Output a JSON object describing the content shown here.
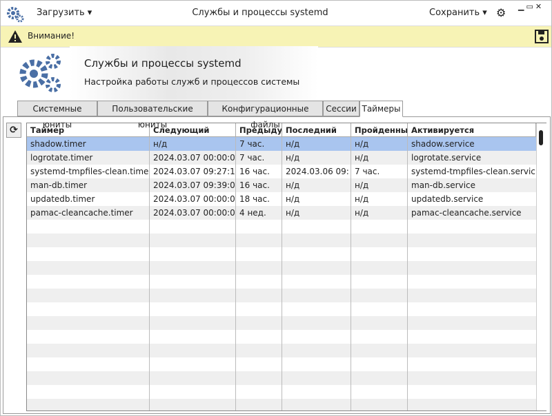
{
  "titlebar": {
    "load": "Загрузить",
    "title": "Службы и процессы systemd",
    "save": "Сохранить"
  },
  "warning": "Внимание!",
  "header": {
    "title": "Службы и процессы systemd",
    "subtitle": "Настройка работы служб и процессов системы"
  },
  "tabs": [
    "Системные юниты",
    "Пользовательские юниты",
    "Конфигурационные файлы",
    "Сессии",
    "Таймеры"
  ],
  "table": {
    "columns": [
      "Таймер",
      "Следующий",
      "Предыдущ",
      "Последний",
      "Пройденный",
      "Активируется"
    ],
    "rows": [
      [
        "shadow.timer",
        " н/д",
        "7 час.",
        "н/д",
        "н/д",
        "shadow.service"
      ],
      [
        "logrotate.timer",
        "2024.03.07 00:00:0",
        "7 час.",
        "н/д",
        "н/д",
        "logrotate.service"
      ],
      [
        "systemd-tmpfiles-clean.timer",
        "2024.03.07 09:27:1",
        "16 час.",
        "2024.03.06 09:",
        "7 час.",
        "systemd-tmpfiles-clean.servic"
      ],
      [
        "man-db.timer",
        "2024.03.07 09:39:0",
        "16 час.",
        "н/д",
        "н/д",
        "man-db.service"
      ],
      [
        "updatedb.timer",
        "2024.03.07 00:00:0",
        "18 час.",
        "н/д",
        "н/д",
        "updatedb.service"
      ],
      [
        "pamac-cleancache.timer",
        "2024.03.07 00:00:0",
        "4 нед.",
        "н/д",
        "н/д",
        "pamac-cleancache.service"
      ]
    ]
  }
}
